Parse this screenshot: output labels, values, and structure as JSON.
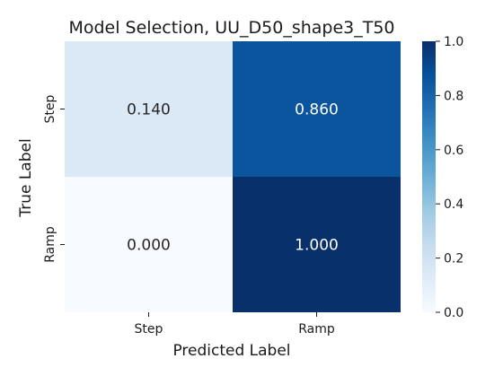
{
  "chart_data": {
    "type": "heatmap",
    "title": "Model Selection, UU_D50_shape3_T50",
    "xlabel": "Predicted Label",
    "ylabel": "True Label",
    "x_categories": [
      "Step",
      "Ramp"
    ],
    "y_categories": [
      "Step",
      "Ramp"
    ],
    "values": [
      [
        0.14,
        0.86
      ],
      [
        0.0,
        1.0
      ]
    ],
    "cell_labels": [
      [
        "0.140",
        "0.860"
      ],
      [
        "0.000",
        "1.000"
      ]
    ],
    "colorscale": "Blues",
    "vmin": 0.0,
    "vmax": 1.0,
    "colorbar_ticks": [
      "0.0",
      "0.2",
      "0.4",
      "0.6",
      "0.8",
      "1.0"
    ],
    "colorbar_tick_values": [
      0.0,
      0.2,
      0.4,
      0.6,
      0.8,
      1.0
    ]
  }
}
